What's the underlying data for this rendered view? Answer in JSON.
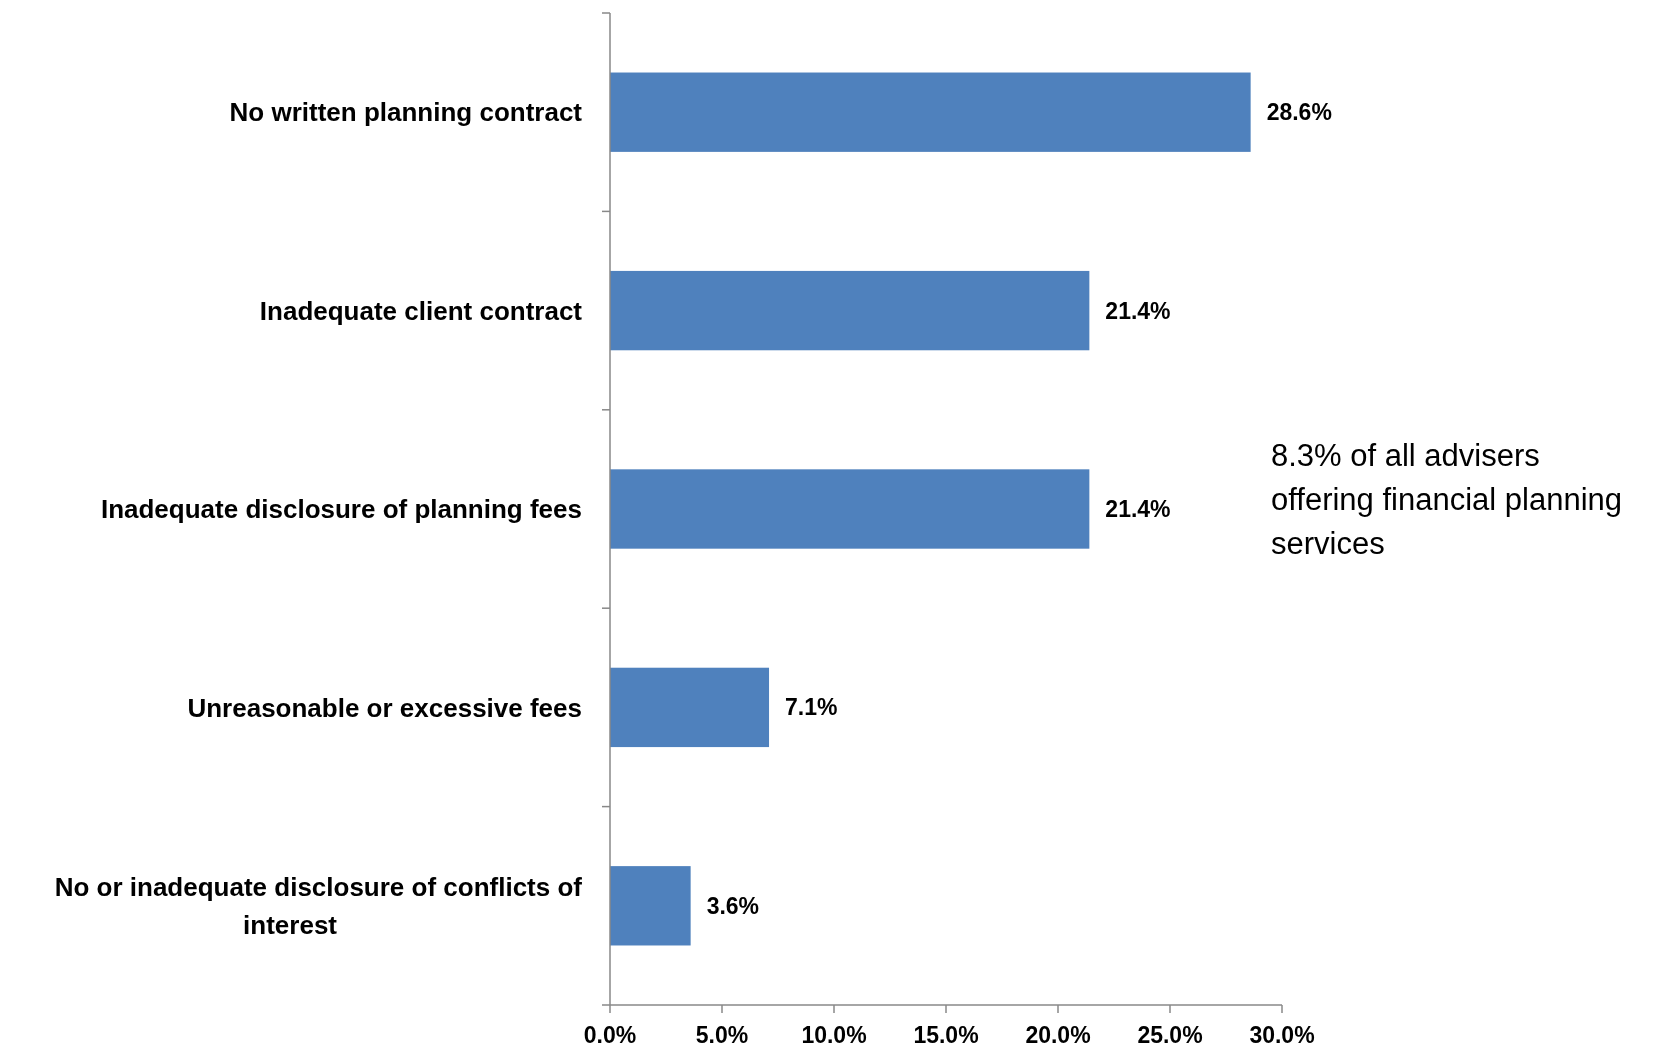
{
  "chart_data": {
    "type": "bar",
    "orientation": "horizontal",
    "categories": [
      "No written planning contract",
      "Inadequate client contract",
      "Inadequate disclosure of planning fees",
      "Unreasonable or excessive fees",
      "No or inadequate disclosure of conflicts of interest"
    ],
    "values": [
      28.6,
      21.4,
      21.4,
      7.1,
      3.6
    ],
    "value_labels": [
      "28.6%",
      "21.4%",
      "21.4%",
      "7.1%",
      "3.6%"
    ],
    "color": "#4f81bd",
    "xlim": [
      0,
      30
    ],
    "xticks": [
      {
        "value": 0,
        "label": "0.0%"
      },
      {
        "value": 5,
        "label": "5.0%"
      },
      {
        "value": 10,
        "label": "10.0%"
      },
      {
        "value": 15,
        "label": "15.0%"
      },
      {
        "value": 20,
        "label": "20.0%"
      },
      {
        "value": 25,
        "label": "25.0%"
      },
      {
        "value": 30,
        "label": "30.0%"
      }
    ],
    "annotations": [
      "8.3% of all advisers offering financial planning services"
    ],
    "grid": false
  }
}
